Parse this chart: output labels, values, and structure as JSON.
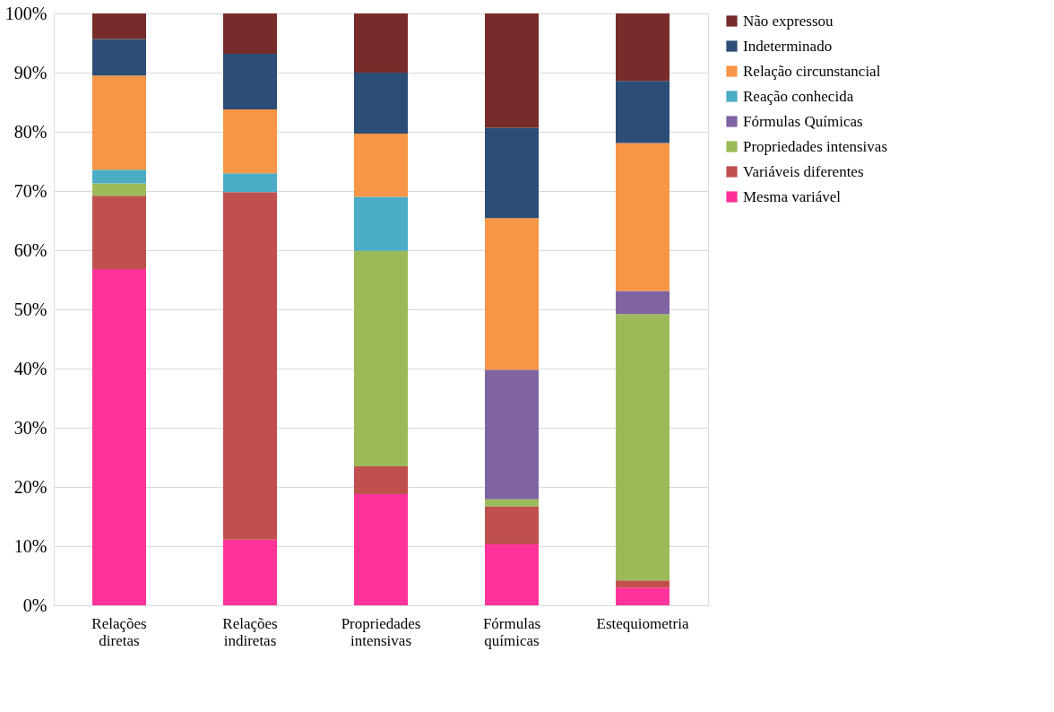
{
  "chart_data": {
    "type": "bar",
    "stacked": true,
    "categories": [
      "Relações diretas",
      "Relações indiretas",
      "Propriedades intensivas",
      "Fórmulas químicas",
      "Estequiometria"
    ],
    "series": [
      {
        "name": "Mesma variável",
        "color": "#ff3399",
        "values": [
          56.8,
          11.1,
          18.8,
          10.3,
          3.0
        ]
      },
      {
        "name": "Variáveis diferentes",
        "color": "#c0504d",
        "values": [
          12.4,
          58.7,
          4.7,
          6.4,
          1.2
        ]
      },
      {
        "name": "Propriedades intensivas",
        "color": "#9bbb59",
        "values": [
          2.1,
          0,
          36.4,
          1.2,
          45.0
        ]
      },
      {
        "name": "Fórmulas Químicas",
        "color": "#8064a2",
        "values": [
          0,
          0,
          0,
          21.9,
          3.9
        ]
      },
      {
        "name": "Reação conhecida",
        "color": "#4bacc6",
        "values": [
          2.3,
          3.2,
          9.1,
          0,
          0
        ]
      },
      {
        "name": "Relação circunstancial",
        "color": "#f79646",
        "values": [
          15.9,
          10.8,
          10.7,
          25.6,
          25.0
        ]
      },
      {
        "name": "Indeterminado",
        "color": "#2c4d75",
        "values": [
          6.2,
          9.4,
          10.3,
          15.3,
          10.5
        ]
      },
      {
        "name": "Não expressou",
        "color": "#772c2a",
        "values": [
          4.3,
          6.8,
          10.0,
          19.3,
          11.4
        ]
      }
    ],
    "ylim": [
      0,
      100
    ],
    "yticks": [
      {
        "value": 0,
        "label": "0%"
      },
      {
        "value": 10,
        "label": "10%"
      },
      {
        "value": 20,
        "label": "20%"
      },
      {
        "value": 30,
        "label": "30%"
      },
      {
        "value": 40,
        "label": "40%"
      },
      {
        "value": 50,
        "label": "50%"
      },
      {
        "value": 60,
        "label": "60%"
      },
      {
        "value": 70,
        "label": "70%"
      },
      {
        "value": 80,
        "label": "80%"
      },
      {
        "value": 90,
        "label": "90%"
      },
      {
        "value": 100,
        "label": "100%"
      }
    ],
    "grid": "y",
    "legend": "right"
  }
}
